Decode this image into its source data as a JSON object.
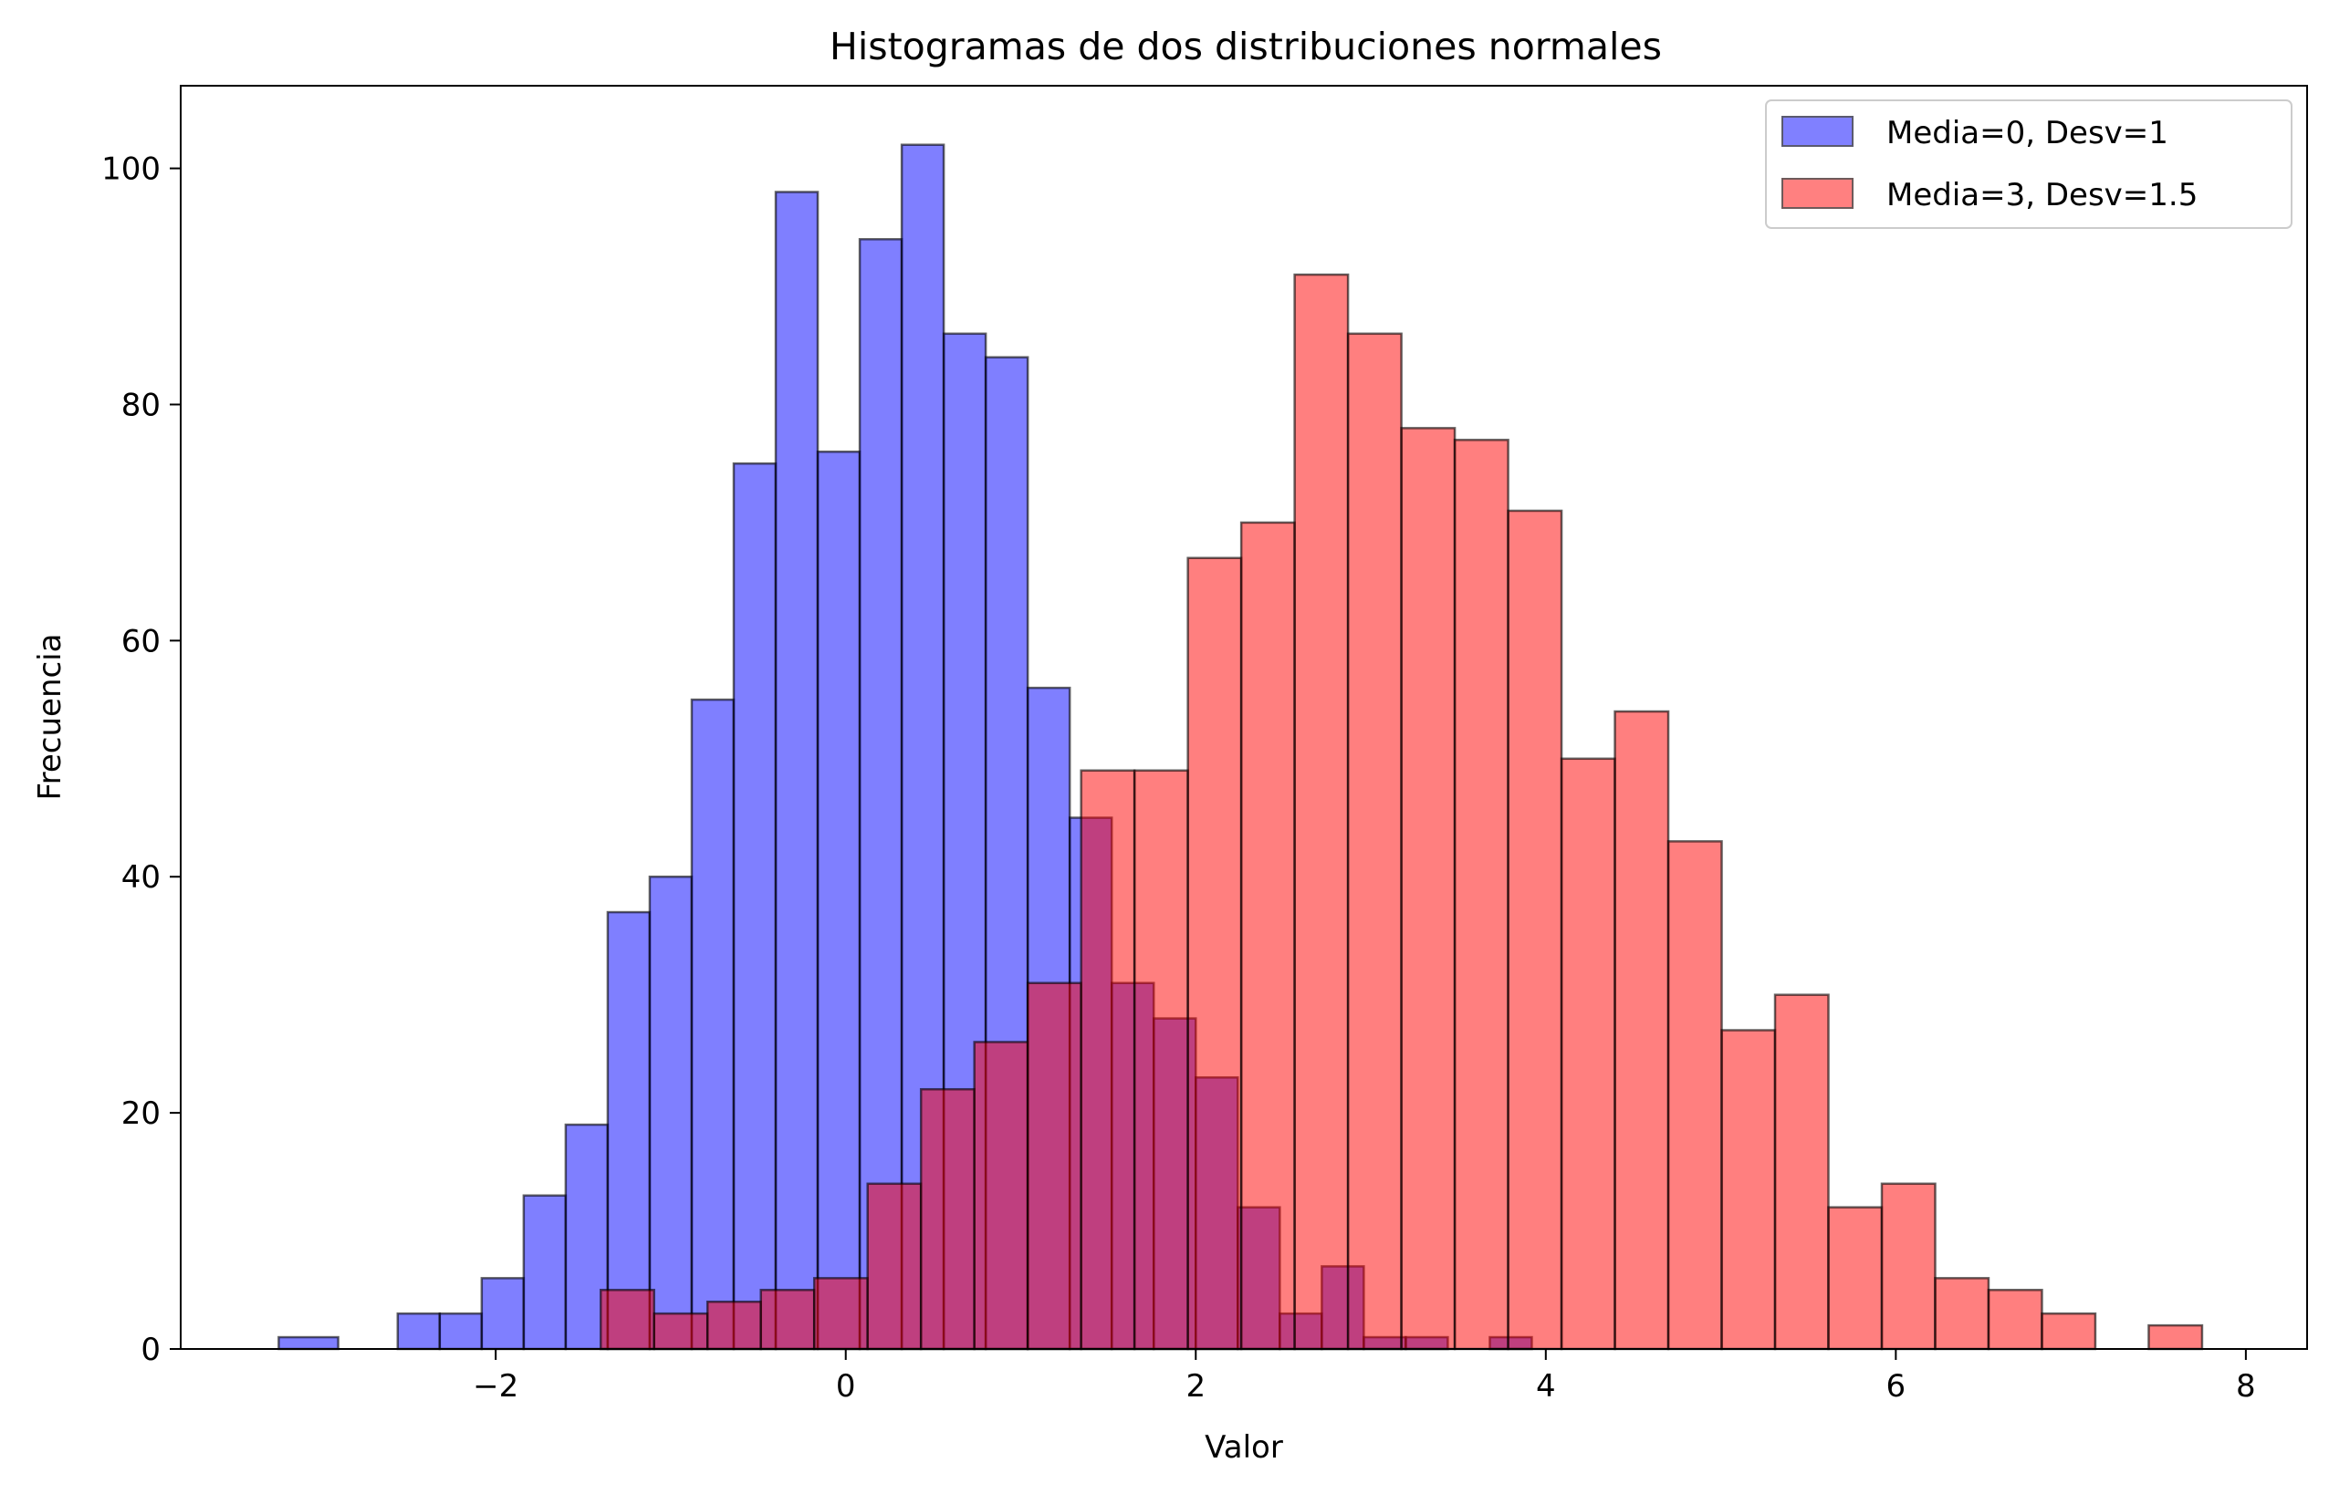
{
  "chart_data": {
    "type": "bar",
    "title": "Histogramas de dos distribuciones normales",
    "xlabel": "Valor",
    "ylabel": "Frecuencia",
    "xlim": [
      -3.8,
      8.35
    ],
    "ylim": [
      0,
      107
    ],
    "x_ticks": [
      -2,
      0,
      2,
      4,
      6,
      8
    ],
    "x_tick_labels": [
      "−2",
      "0",
      "2",
      "4",
      "6",
      "8"
    ],
    "y_ticks": [
      0,
      20,
      40,
      60,
      80,
      100
    ],
    "y_tick_labels": [
      "0",
      "20",
      "40",
      "60",
      "80",
      "100"
    ],
    "grid": false,
    "legend": {
      "placement": "top-right"
    },
    "series": [
      {
        "name": "Media=0, Desv=1",
        "color": "#0000ff",
        "alpha": 0.5,
        "edgecolor": "#000000",
        "bin_edges": [
          -3.24,
          -2.9,
          -2.56,
          -2.32,
          -2.08,
          -1.84,
          -1.6,
          -1.36,
          -1.12,
          -0.88,
          -0.64,
          -0.4,
          -0.16,
          0.08,
          0.32,
          0.56,
          0.8,
          1.04,
          1.28,
          1.52,
          1.76,
          2.0,
          2.24,
          2.48,
          2.72,
          2.96,
          3.2,
          3.44,
          3.68,
          3.92
        ],
        "values": [
          1,
          0,
          3,
          3,
          6,
          13,
          19,
          37,
          40,
          55,
          75,
          98,
          76,
          94,
          102,
          86,
          84,
          56,
          45,
          31,
          28,
          23,
          12,
          3,
          7,
          1,
          1,
          0,
          1
        ]
      },
      {
        "name": "Media=3, Desv=1.5",
        "color": "#ff0000",
        "alpha": 0.5,
        "edgecolor": "#000000",
        "bin_edges": [
          -1.4,
          -1.095,
          -0.79,
          -0.485,
          -0.18,
          0.125,
          0.43,
          0.735,
          1.04,
          1.345,
          1.65,
          1.955,
          2.26,
          2.565,
          2.87,
          3.175,
          3.48,
          3.785,
          4.09,
          4.395,
          4.7,
          5.005,
          5.31,
          5.615,
          5.92,
          6.225,
          6.53,
          6.835,
          7.14,
          7.445,
          7.75
        ],
        "values": [
          5,
          3,
          4,
          5,
          6,
          14,
          22,
          26,
          31,
          49,
          49,
          67,
          70,
          91,
          86,
          78,
          77,
          71,
          50,
          54,
          43,
          27,
          30,
          12,
          14,
          6,
          5,
          3,
          0,
          2
        ]
      }
    ]
  }
}
